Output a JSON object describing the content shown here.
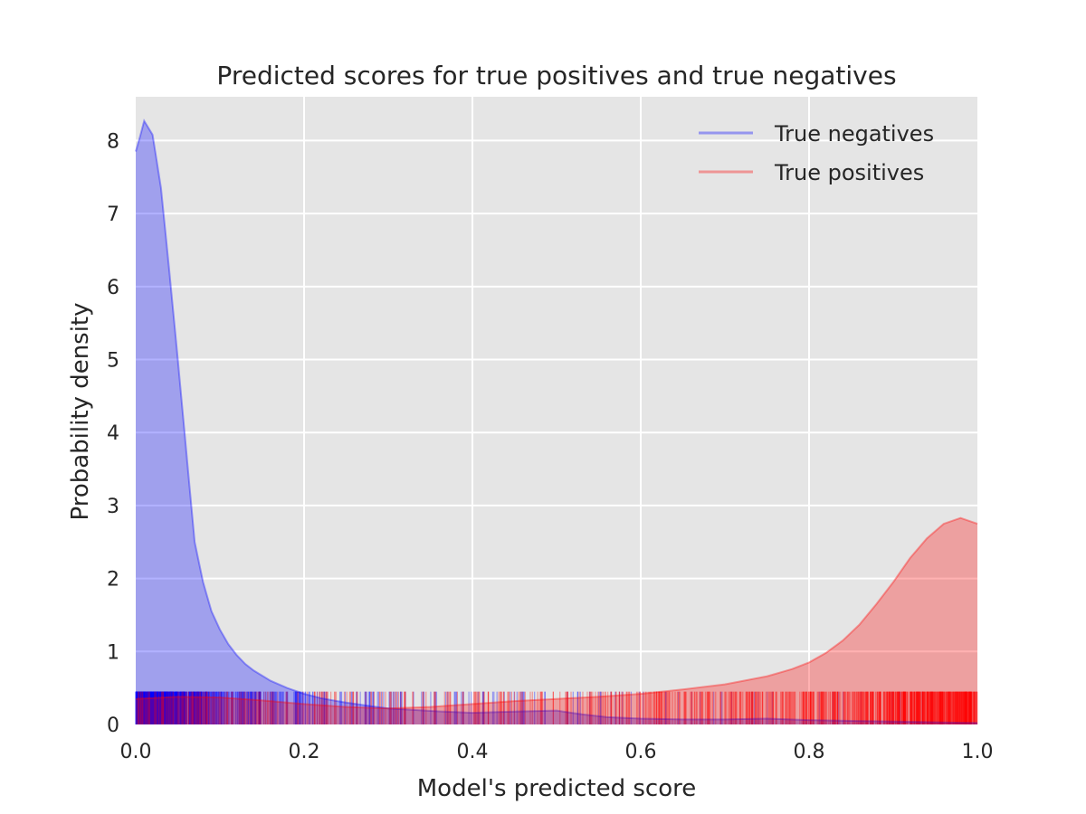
{
  "chart_data": {
    "type": "area",
    "title": "Predicted scores for true positives and true negatives",
    "xlabel": "Model's predicted score",
    "ylabel": "Probability density",
    "xlim": [
      0,
      1.0
    ],
    "ylim": [
      0,
      8.6
    ],
    "x_ticks": [
      "0.0",
      "0.2",
      "0.4",
      "0.6",
      "0.8",
      "1.0"
    ],
    "y_ticks": [
      "0",
      "1",
      "2",
      "3",
      "4",
      "5",
      "6",
      "7",
      "8"
    ],
    "grid": true,
    "legend_position": "top-right",
    "series": [
      {
        "name": "True negatives",
        "color": "#0000ff",
        "x": [
          0.0,
          0.005,
          0.01,
          0.02,
          0.03,
          0.04,
          0.05,
          0.06,
          0.07,
          0.08,
          0.09,
          0.1,
          0.11,
          0.12,
          0.13,
          0.14,
          0.16,
          0.18,
          0.2,
          0.22,
          0.25,
          0.28,
          0.3,
          0.33,
          0.36,
          0.4,
          0.43,
          0.46,
          0.5,
          0.53,
          0.56,
          0.6,
          0.65,
          0.7,
          0.75,
          0.8,
          0.85,
          0.9,
          0.95,
          1.0
        ],
        "y": [
          7.85,
          8.05,
          8.27,
          8.08,
          7.35,
          6.2,
          5.0,
          3.75,
          2.5,
          1.95,
          1.55,
          1.3,
          1.1,
          0.95,
          0.83,
          0.74,
          0.6,
          0.5,
          0.42,
          0.36,
          0.3,
          0.25,
          0.22,
          0.2,
          0.18,
          0.16,
          0.17,
          0.18,
          0.19,
          0.14,
          0.1,
          0.08,
          0.07,
          0.07,
          0.08,
          0.06,
          0.05,
          0.04,
          0.03,
          0.02
        ]
      },
      {
        "name": "True positives",
        "color": "#ff0000",
        "x": [
          0.0,
          0.05,
          0.1,
          0.15,
          0.2,
          0.25,
          0.3,
          0.35,
          0.4,
          0.45,
          0.5,
          0.55,
          0.6,
          0.65,
          0.7,
          0.75,
          0.78,
          0.8,
          0.82,
          0.84,
          0.86,
          0.88,
          0.9,
          0.92,
          0.94,
          0.96,
          0.98,
          1.0
        ],
        "y": [
          0.35,
          0.38,
          0.37,
          0.33,
          0.28,
          0.24,
          0.22,
          0.24,
          0.28,
          0.32,
          0.35,
          0.38,
          0.42,
          0.48,
          0.55,
          0.66,
          0.76,
          0.85,
          0.98,
          1.15,
          1.37,
          1.65,
          1.95,
          2.28,
          2.55,
          2.75,
          2.83,
          2.75
        ]
      }
    ],
    "rug_height": 0.45
  }
}
